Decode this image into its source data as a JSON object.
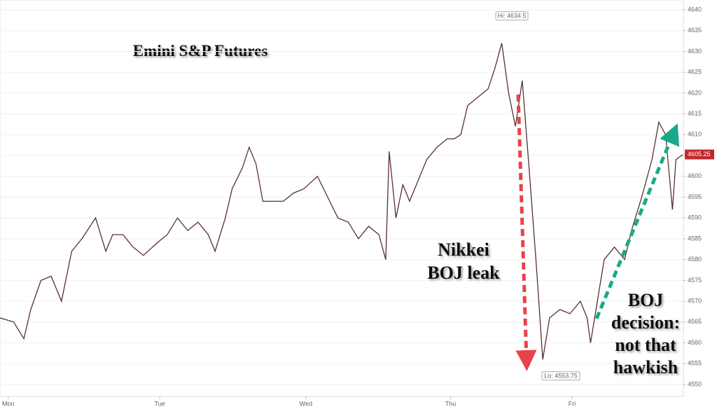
{
  "chart_data": {
    "type": "line",
    "title": "Emini S&P Futures",
    "x": [
      0,
      2,
      3.5,
      4.5,
      6,
      7.5,
      9,
      10.5,
      12,
      14,
      15.5,
      16.5,
      18,
      19.5,
      21,
      23,
      24.5,
      26,
      27.5,
      29,
      30.5,
      31.5,
      33,
      34,
      35.5,
      36.5,
      37.5,
      38.5,
      40,
      41.5,
      43,
      44.5,
      46.5,
      48,
      49.5,
      51,
      52.5,
      54,
      55.5,
      56.5,
      57,
      58,
      59,
      60,
      61.5,
      62.5,
      64,
      65.5,
      66.5,
      67.5,
      68.5,
      70,
      71.5,
      72.5,
      73.5,
      74.5,
      75.5,
      76.5,
      77.5,
      78.5,
      79,
      79.5,
      80.5,
      82,
      83.5,
      85,
      86,
      86.5,
      87.5,
      88.5,
      90,
      91.5,
      92.5,
      94,
      95.5,
      96.5,
      97.5,
      98.5,
      99,
      100
    ],
    "series": [
      {
        "name": "Emini S&P Futures",
        "color": "#5a3030",
        "values": [
          4566,
          4565,
          4561,
          4568,
          4575,
          4576,
          4570,
          4582,
          4585,
          4590,
          4582,
          4586,
          4586,
          4583,
          4581,
          4584,
          4586,
          4590,
          4587,
          4589,
          4586,
          4582,
          4590,
          4597,
          4602,
          4607,
          4603,
          4594,
          4594,
          4594,
          4596,
          4597,
          4600,
          4595,
          4590,
          4589,
          4585,
          4588,
          4586,
          4580,
          4606,
          4590,
          4598,
          4594,
          4600,
          4604,
          4607,
          4609,
          4609,
          4610,
          4617,
          4619,
          4621,
          4626,
          4632,
          4620,
          4612,
          4623,
          4602,
          4580,
          4568,
          4556,
          4566,
          4568,
          4567,
          4570,
          4566,
          4560,
          4570,
          4580,
          4583,
          4580,
          4587,
          4595,
          4604,
          4613,
          4610,
          4592,
          4604,
          4605.25
        ]
      }
    ],
    "xlim": [
      0,
      100
    ],
    "xticks": [
      {
        "value": 1.2,
        "label": "Mon"
      },
      {
        "value": 23.4,
        "label": "Tue"
      },
      {
        "value": 44.8,
        "label": "Wed"
      },
      {
        "value": 66,
        "label": "Thu"
      },
      {
        "value": 83.8,
        "label": "Fri"
      }
    ],
    "ylim": [
      4550,
      4640
    ],
    "yticks": [
      4550,
      4555,
      4560,
      4565,
      4570,
      4575,
      4580,
      4585,
      4590,
      4595,
      4600,
      4605,
      4610,
      4615,
      4620,
      4625,
      4630,
      4635,
      4640
    ],
    "grid": true,
    "high": {
      "value": 4634.5,
      "label": "Hi: 4634.5"
    },
    "low": {
      "value": 4553.75,
      "label": "Lo: 4553.75"
    },
    "last": 4605.25,
    "annotations": [
      [
        "Nikkei",
        "BOJ leak"
      ],
      [
        "BOJ",
        "decision:",
        "not that",
        "hawkish"
      ]
    ]
  }
}
